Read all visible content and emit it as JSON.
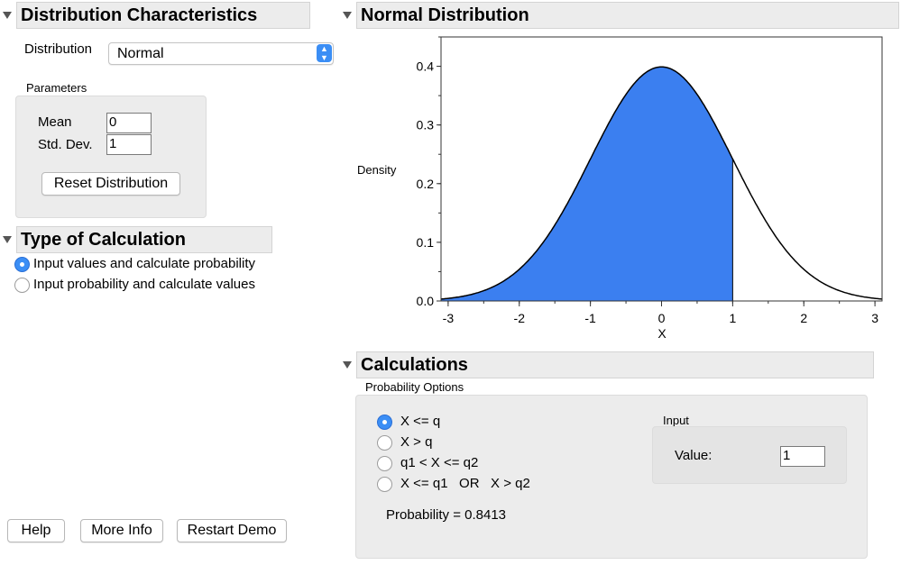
{
  "sections": {
    "distribution": "Distribution Characteristics",
    "type_calc": "Type of Calculation",
    "normal": "Normal Distribution",
    "calculations": "Calculations"
  },
  "distribution": {
    "label": "Distribution",
    "selected": "Normal",
    "parameters_label": "Parameters",
    "mean_label": "Mean",
    "mean_value": "0",
    "sd_label": "Std. Dev.",
    "sd_value": "1",
    "reset_button": "Reset Distribution"
  },
  "type_calc": {
    "options": [
      "Input values and calculate probability",
      "Input probability and calculate values"
    ],
    "selected_index": 0
  },
  "footer_buttons": {
    "help": "Help",
    "more_info": "More Info",
    "restart": "Restart Demo"
  },
  "calculations": {
    "probability_options_label": "Probability Options",
    "options": [
      "X <= q",
      "X > q",
      "q1 < X <= q2",
      "X <= q1   OR   X > q2"
    ],
    "selected_index": 0,
    "input_label": "Input",
    "value_label": "Value:",
    "value": "1",
    "probability_text": "Probability = 0.8413"
  },
  "chart_data": {
    "type": "area",
    "distribution": "normal",
    "mean": 0,
    "sd": 1,
    "shade_upper": 1,
    "fill_color": "#3b7ff0",
    "curve_color": "#000000",
    "xlabel": "X",
    "ylabel": "Density",
    "xlim": [
      -3.1,
      3.1
    ],
    "ylim": [
      0,
      0.45
    ],
    "xticks": [
      "-3",
      "-2",
      "-1",
      "0",
      "1",
      "2",
      "3"
    ],
    "yticks": [
      "0.0",
      "0.1",
      "0.2",
      "0.3",
      "0.4"
    ],
    "grid": false
  }
}
